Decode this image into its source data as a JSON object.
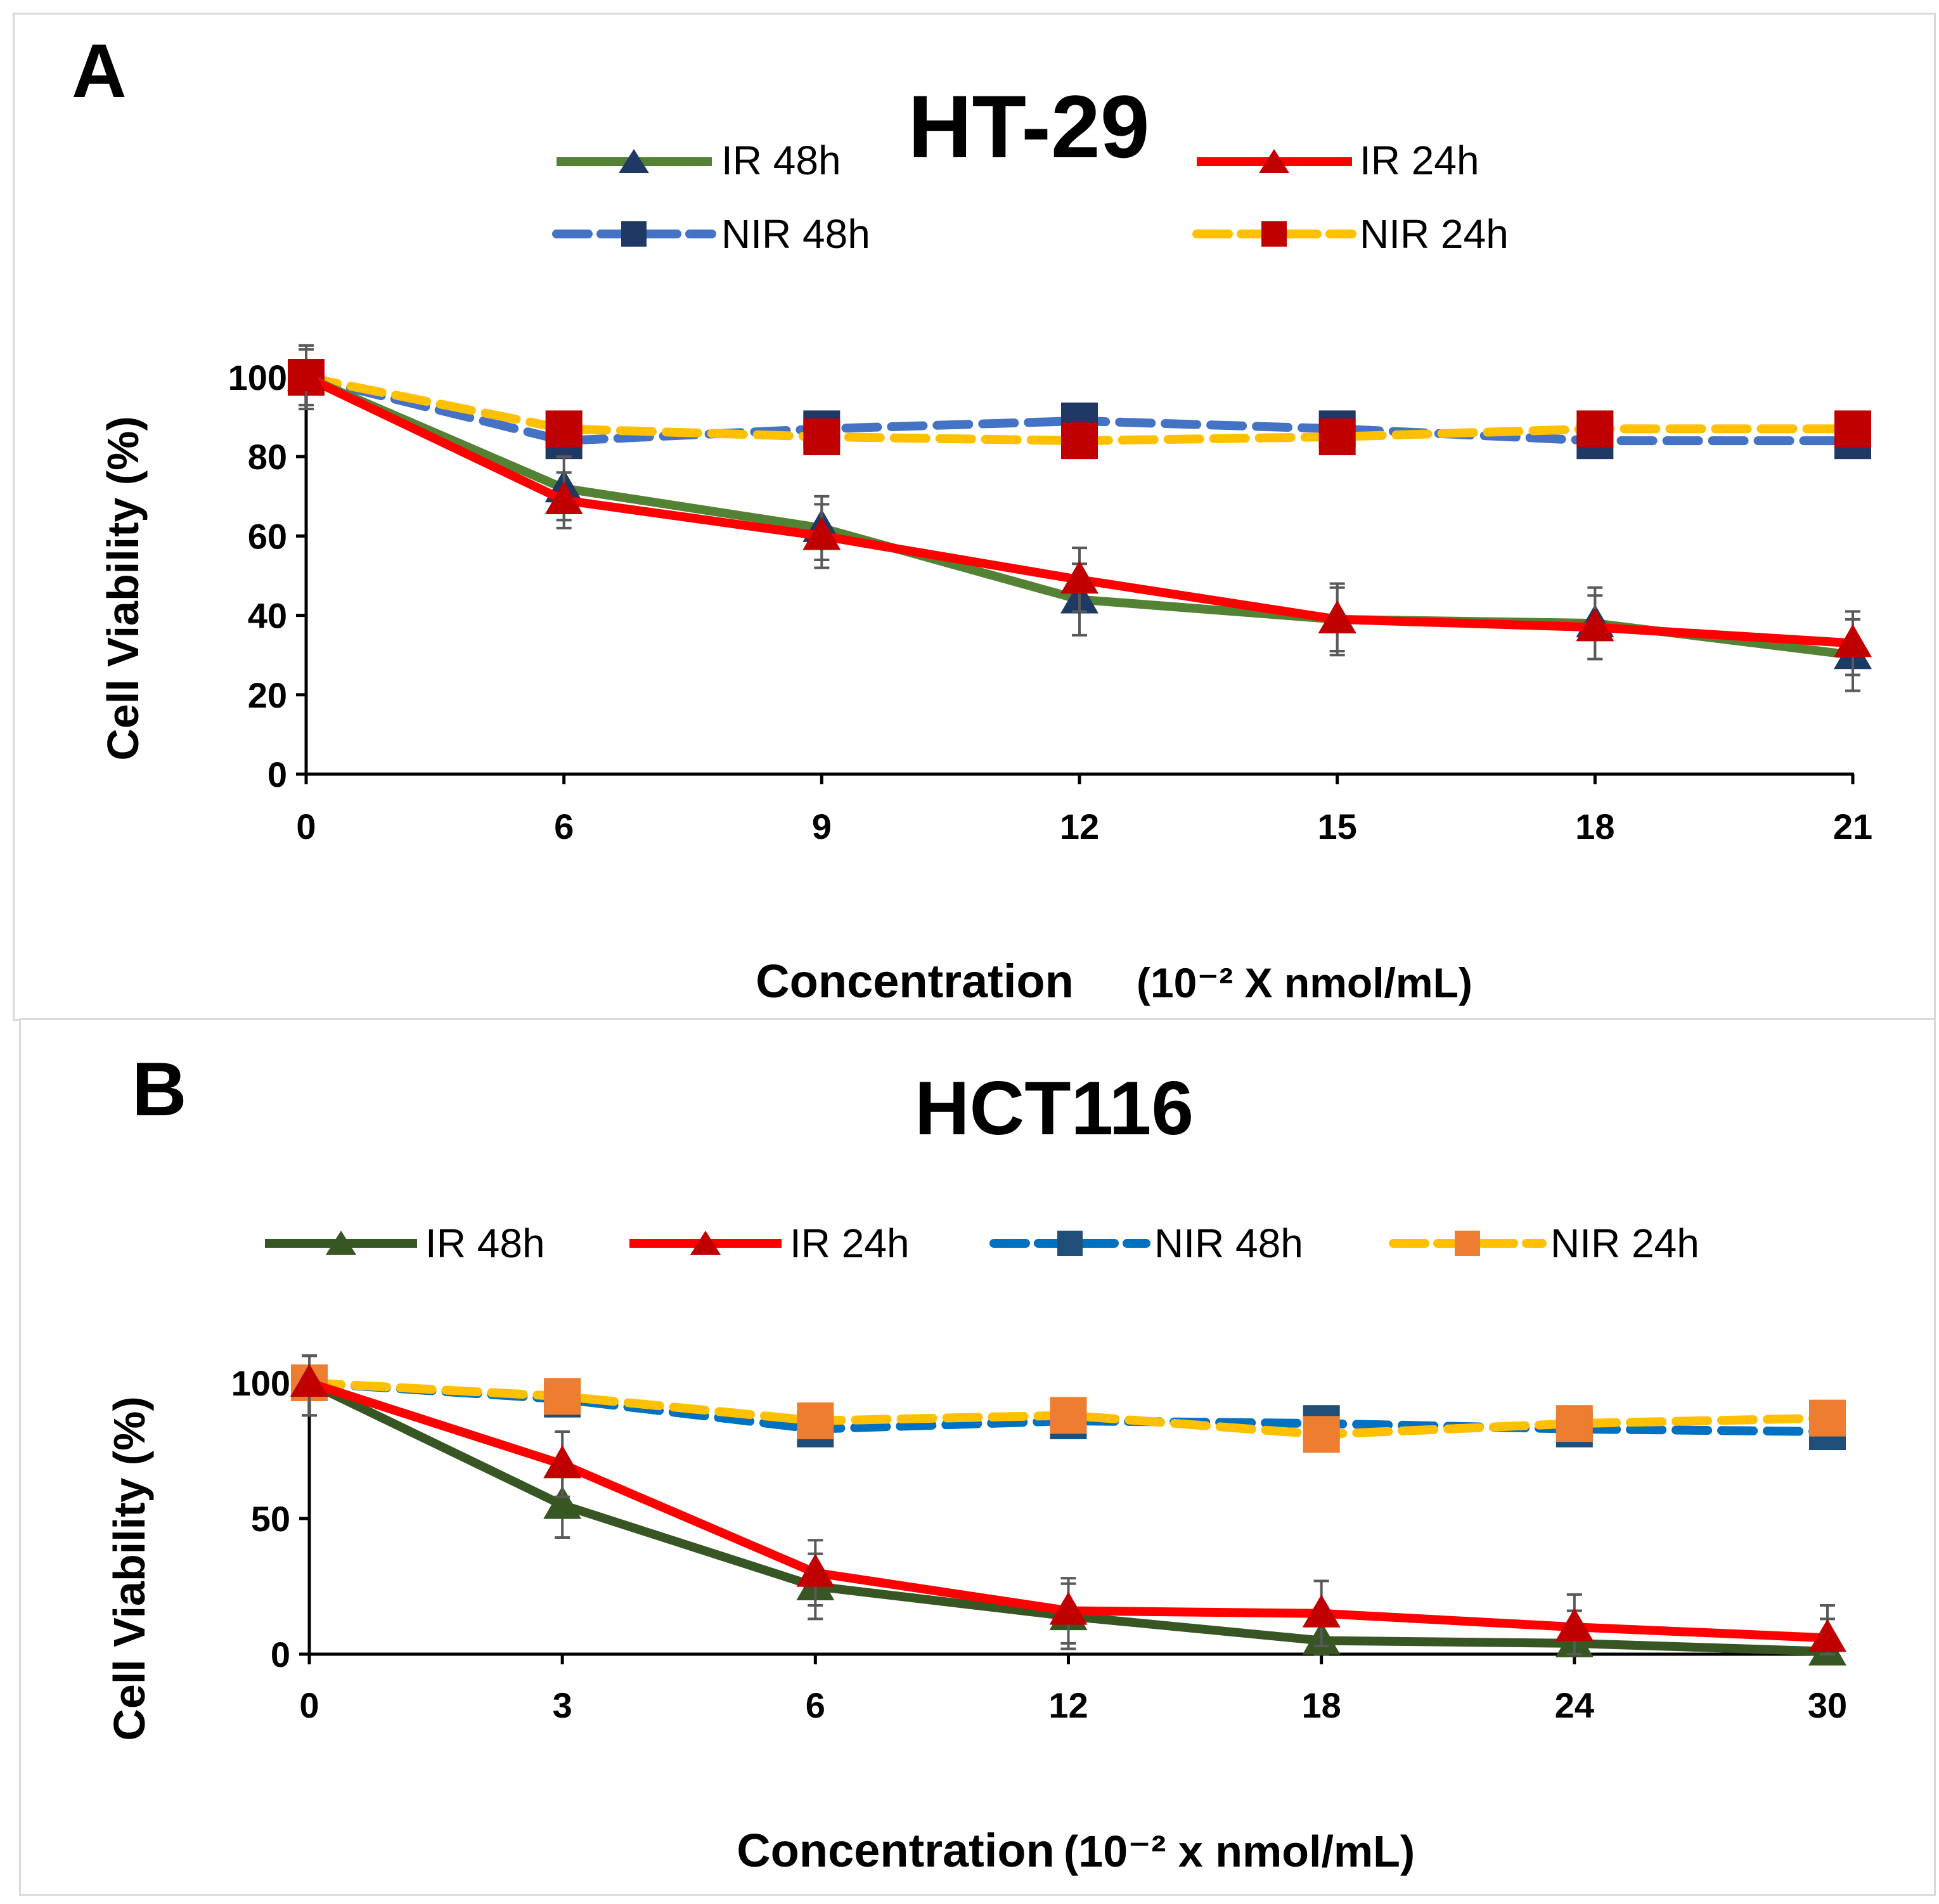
{
  "chart_data": [
    {
      "type": "line",
      "panel_label": "A",
      "title": "HT-29",
      "categories": [
        "0",
        "6",
        "9",
        "12",
        "15",
        "18",
        "21"
      ],
      "ylabel": "Cell Viability  (%)",
      "xlabel_main": "Concentration",
      "xlabel_unit": "(10⁻² X  nmol/mL)",
      "ylim": [
        0,
        100
      ],
      "yticks": [
        "0",
        "20",
        "40",
        "60",
        "80",
        "100"
      ],
      "legend_position": "top, two rows",
      "series": [
        {
          "name": "IR 48h",
          "line_color": "#548235",
          "marker": "triangle",
          "marker_color": "#1f3864",
          "dashed": false,
          "values": [
            100,
            72,
            62,
            44,
            39,
            38,
            30
          ],
          "errors": [
            8,
            8,
            8,
            9,
            9,
            9,
            9
          ]
        },
        {
          "name": "IR 24h",
          "line_color": "#ff0000",
          "marker": "triangle",
          "marker_color": "#c00000",
          "dashed": false,
          "values": [
            100,
            69,
            60,
            49,
            39,
            37,
            33
          ],
          "errors": [
            7,
            7,
            8,
            8,
            8,
            8,
            8
          ]
        },
        {
          "name": "NIR 48h",
          "line_color": "#4472c4",
          "marker": "square",
          "marker_color": "#1f3864",
          "dashed": true,
          "values": [
            100,
            84,
            87,
            89,
            87,
            84,
            84
          ],
          "errors": [
            4,
            2,
            2,
            2,
            2,
            2,
            2
          ]
        },
        {
          "name": "NIR 24h",
          "line_color": "#ffc000",
          "marker": "square",
          "marker_color": "#c00000",
          "dashed": true,
          "values": [
            100,
            87,
            85,
            84,
            85,
            87,
            87
          ],
          "errors": [
            4,
            2,
            2,
            2,
            2,
            2,
            2
          ]
        }
      ]
    },
    {
      "type": "line",
      "panel_label": "B",
      "title": "HCT116",
      "categories": [
        "0",
        "3",
        "6",
        "12",
        "18",
        "24",
        "30"
      ],
      "ylabel": "Cell Viability  (%)",
      "xlabel_main": "Concentration",
      "xlabel_unit": "(10⁻² x nmol/mL)",
      "ylim": [
        0,
        100
      ],
      "yticks": [
        "0",
        "50",
        "100"
      ],
      "legend_position": "top, single row",
      "series": [
        {
          "name": "IR 48h",
          "line_color": "#375623",
          "marker": "triangle",
          "marker_color": "#375623",
          "dashed": false,
          "values": [
            100,
            55,
            25,
            14,
            5,
            4,
            1
          ],
          "errors": [
            12,
            12,
            12,
            12,
            12,
            12,
            12
          ]
        },
        {
          "name": "IR 24h",
          "line_color": "#ff0000",
          "marker": "triangle",
          "marker_color": "#c00000",
          "dashed": false,
          "values": [
            100,
            70,
            30,
            16,
            15,
            10,
            6
          ],
          "errors": [
            12,
            12,
            12,
            12,
            12,
            12,
            12
          ]
        },
        {
          "name": "NIR 48h",
          "line_color": "#0070c0",
          "marker": "square",
          "marker_color": "#1f4e79",
          "dashed": true,
          "values": [
            100,
            94,
            83,
            86,
            85,
            83,
            82
          ],
          "errors": [
            12,
            2,
            2,
            2,
            2,
            2,
            2
          ]
        },
        {
          "name": "NIR 24h",
          "line_color": "#ffc000",
          "marker": "square",
          "marker_color": "#ed7d31",
          "dashed": true,
          "values": [
            100,
            95,
            86,
            88,
            81,
            85,
            87
          ],
          "errors": [
            12,
            2,
            2,
            2,
            2,
            2,
            2
          ]
        }
      ]
    }
  ]
}
